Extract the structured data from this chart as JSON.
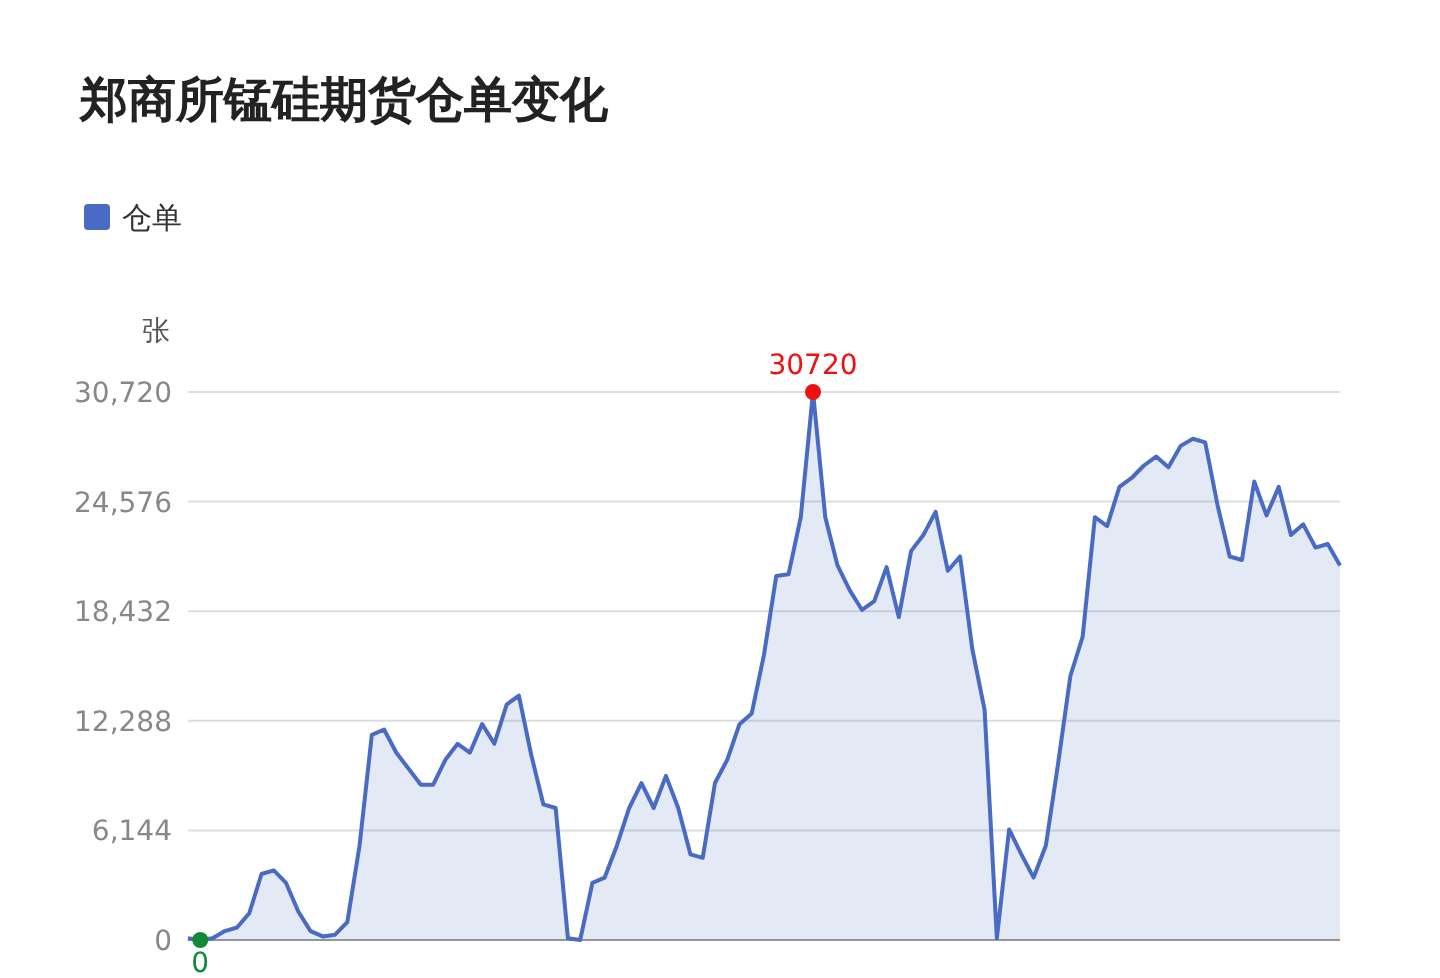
{
  "chart_data": {
    "type": "area",
    "title": "郑商所锰硅期货仓单变化",
    "ylabel": "张",
    "legend": "top left",
    "grid": "y",
    "ylim": [
      0,
      30720
    ],
    "yticks": [
      {
        "value": 0,
        "label": "0"
      },
      {
        "value": 6144,
        "label": "6,144"
      },
      {
        "value": 12288,
        "label": "12,288"
      },
      {
        "value": 18432,
        "label": "18,432"
      },
      {
        "value": 24576,
        "label": "24,576"
      },
      {
        "value": 30720,
        "label": "30,720"
      }
    ],
    "annotations": [
      {
        "text": "30720",
        "y": 30720
      },
      {
        "text": "0",
        "y": 0
      }
    ],
    "categories": [
      null,
      null,
      null,
      null,
      null,
      null,
      null,
      null,
      null,
      null,
      null,
      null,
      null,
      null,
      null,
      null,
      null,
      null,
      null,
      null,
      null,
      null,
      null,
      null,
      null,
      null,
      null,
      null,
      null,
      null,
      null,
      null,
      null,
      null,
      null,
      null,
      null,
      null,
      null,
      null,
      null,
      null,
      null,
      null,
      null,
      null,
      null,
      null,
      null,
      null,
      null,
      null,
      null,
      null,
      null,
      null,
      null,
      null,
      null,
      null,
      null,
      null,
      null,
      null,
      null,
      null,
      null,
      null,
      null,
      null,
      null,
      null,
      null,
      null,
      null,
      null,
      null,
      null,
      null,
      null,
      null,
      null,
      null,
      null,
      null,
      null,
      null,
      null,
      null,
      null,
      null,
      null,
      null,
      null,
      null
    ],
    "series": [
      {
        "name": "仓单",
        "color": "#4a6bc4",
        "values": [
          100,
          0,
          100,
          500,
          700,
          1500,
          3700,
          3900,
          3200,
          1600,
          500,
          200,
          300,
          1000,
          5300,
          11500,
          11800,
          10500,
          9600,
          8700,
          8700,
          10100,
          11000,
          10500,
          12100,
          11000,
          13200,
          13700,
          10400,
          7600,
          7400,
          100,
          0,
          3200,
          3500,
          5300,
          7400,
          8800,
          7400,
          9200,
          7400,
          4800,
          4600,
          8800,
          10100,
          12100,
          12700,
          16000,
          20400,
          20500,
          23700,
          30720,
          23700,
          21000,
          19600,
          18500,
          19000,
          20900,
          18100,
          21800,
          22700,
          24000,
          20700,
          21500,
          16300,
          12900,
          100,
          6200,
          4800,
          3500,
          5300,
          9900,
          14800,
          17000,
          23700,
          23200,
          25400,
          25900,
          26600,
          27100,
          26500,
          27700,
          28100,
          27900,
          24400,
          21500,
          21300,
          25700,
          23800,
          25400,
          22700,
          23300,
          22000,
          22200,
          21000
        ]
      }
    ]
  }
}
